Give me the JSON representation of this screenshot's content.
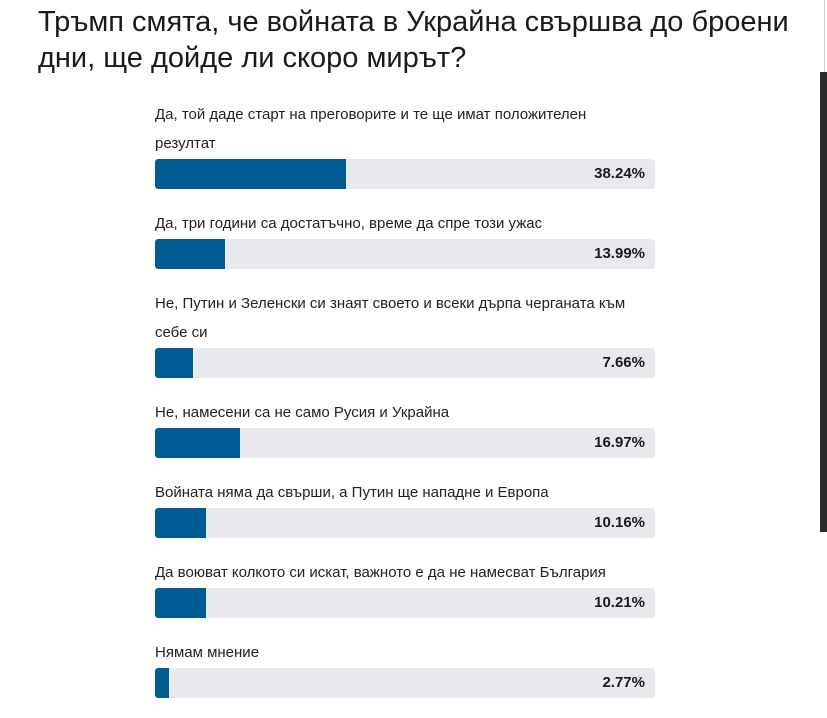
{
  "poll": {
    "title": "Тръмп смята, че войната в Украйна свършва до броени дни, ще дойде ли скоро мирът?",
    "bar_color": "#005b93",
    "track_color": "#e8e9ed",
    "options": [
      {
        "label": "Да, той даде старт на преговорите и те ще имат положителен резултат",
        "percent": 38.24,
        "percent_label": "38.24%"
      },
      {
        "label": "Да, три години са достатъчно, време да спре този ужас",
        "percent": 13.99,
        "percent_label": "13.99%"
      },
      {
        "label": "Не, Путин и Зеленски си знаят своето и всеки дърпа черганата към себе си",
        "percent": 7.66,
        "percent_label": "7.66%"
      },
      {
        "label": "Не, намесени са не само Русия и Украйна",
        "percent": 16.97,
        "percent_label": "16.97%"
      },
      {
        "label": "Войната няма да свърши, а Путин ще нападне и Европа",
        "percent": 10.16,
        "percent_label": "10.16%"
      },
      {
        "label": "Да воюват колкото си искат, важното е да не намесват България",
        "percent": 10.21,
        "percent_label": "10.21%"
      },
      {
        "label": "Нямам мнение",
        "percent": 2.77,
        "percent_label": "2.77%"
      }
    ]
  }
}
